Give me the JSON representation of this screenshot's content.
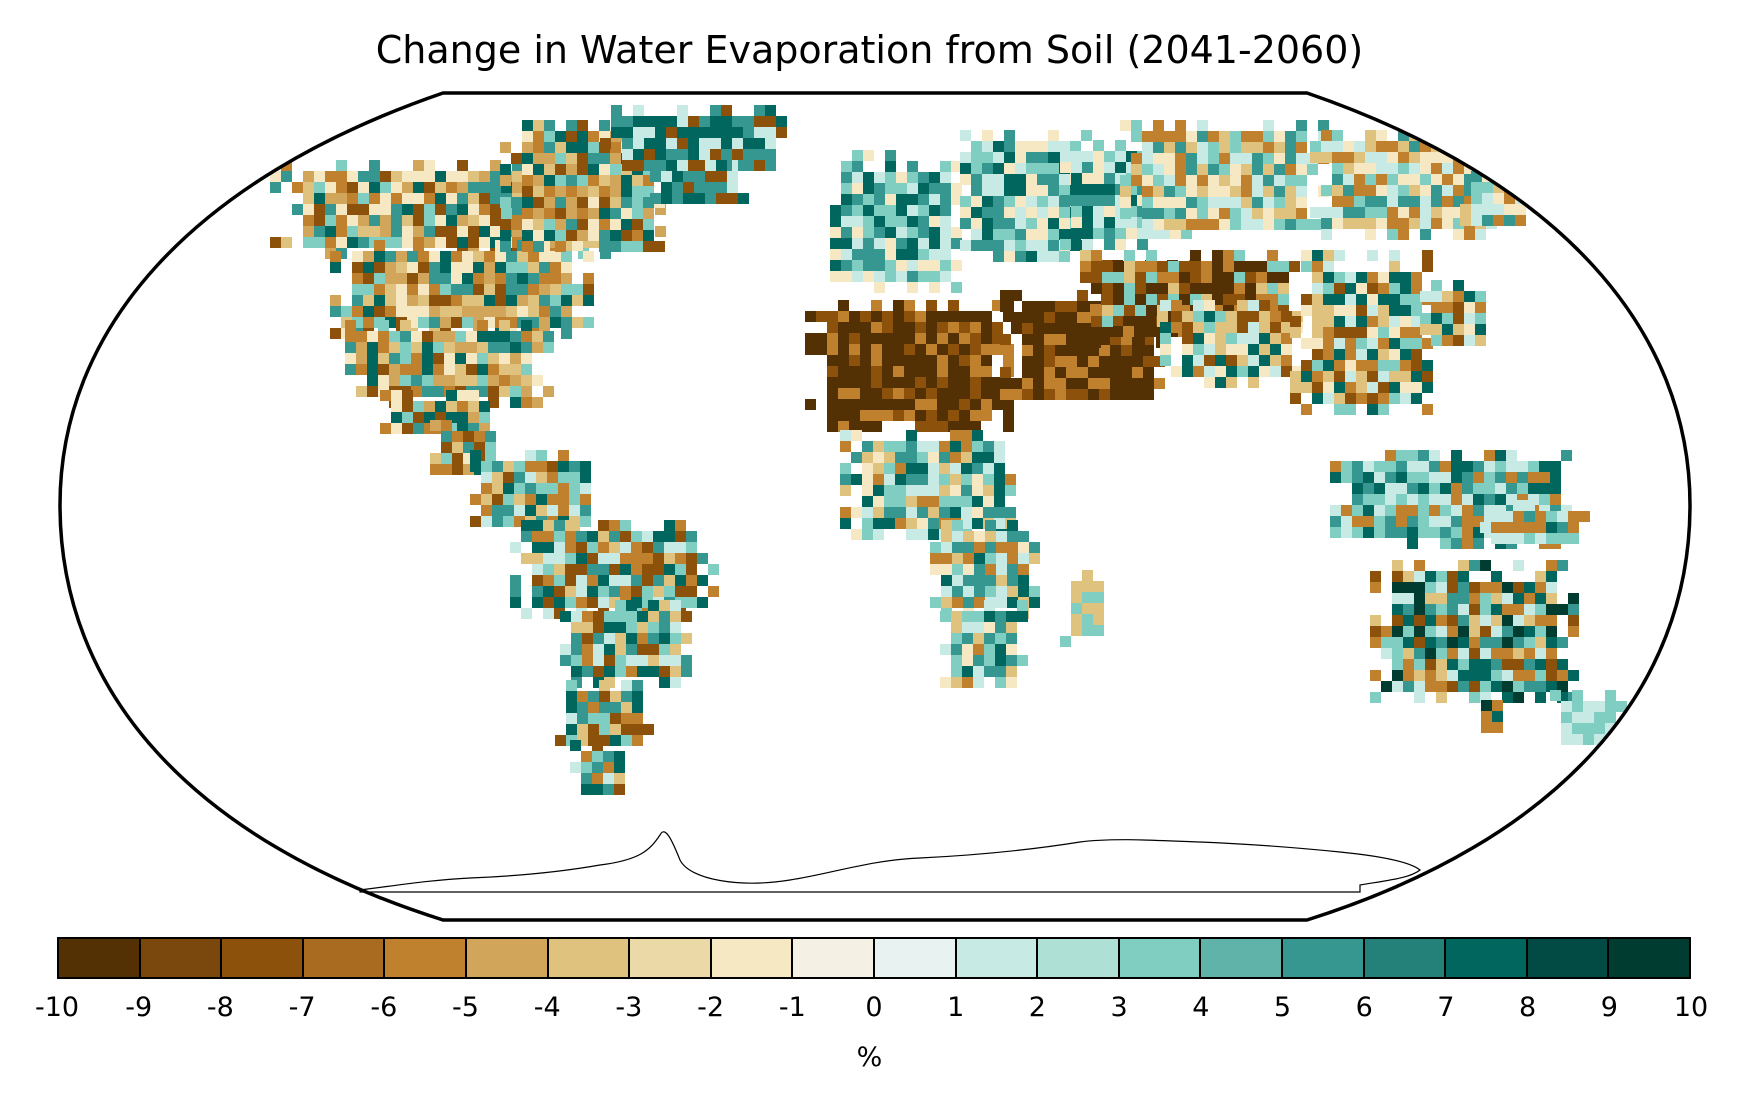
{
  "title": "Change in Water Evaporation from Soil (2041-2060)",
  "colorbar": {
    "unit": "%",
    "ticks": [
      "-10",
      "-9",
      "-8",
      "-7",
      "-6",
      "-5",
      "-4",
      "-3",
      "-2",
      "-1",
      "0",
      "1",
      "2",
      "3",
      "4",
      "5",
      "6",
      "7",
      "8",
      "9",
      "10"
    ],
    "colors": [
      "#543005",
      "#7a470d",
      "#8c510a",
      "#a86b1f",
      "#bf812d",
      "#d1a55a",
      "#dfc27d",
      "#ecd9a8",
      "#f6e8c3",
      "#f5f0e4",
      "#e8f3f1",
      "#c7eae5",
      "#aee0d6",
      "#80cdc1",
      "#5fb3a8",
      "#35978f",
      "#23817a",
      "#01665e",
      "#014b44",
      "#003c30"
    ]
  },
  "regions": [
    {
      "name": "North America",
      "colors": [
        "#bf812d",
        "#d1a55a",
        "#dfc27d",
        "#f6e8c3",
        "#80cdc1",
        "#35978f",
        "#01665e",
        "#8c510a"
      ]
    },
    {
      "name": "Greenland",
      "colors": [
        "#01665e",
        "#35978f",
        "#8c510a",
        "#c7eae5"
      ]
    },
    {
      "name": "South America",
      "colors": [
        "#01665e",
        "#35978f",
        "#80cdc1",
        "#bf812d",
        "#dfc27d",
        "#8c510a",
        "#c7eae5"
      ]
    },
    {
      "name": "Europe",
      "colors": [
        "#80cdc1",
        "#35978f",
        "#c7eae5",
        "#01665e",
        "#f6e8c3"
      ]
    },
    {
      "name": "North Africa and Middle East",
      "colors": [
        "#543005",
        "#543005",
        "#8c510a",
        "#543005",
        "#bf812d"
      ]
    },
    {
      "name": "Sub-Saharan Africa",
      "colors": [
        "#80cdc1",
        "#c7eae5",
        "#01665e",
        "#bf812d",
        "#dfc27d",
        "#35978f",
        "#f6e8c3"
      ]
    },
    {
      "name": "Northern Asia",
      "colors": [
        "#80cdc1",
        "#c7eae5",
        "#35978f",
        "#f6e8c3",
        "#dfc27d",
        "#bf812d"
      ]
    },
    {
      "name": "Central Asia",
      "colors": [
        "#543005",
        "#8c510a",
        "#bf812d",
        "#dfc27d",
        "#80cdc1"
      ]
    },
    {
      "name": "South and East Asia",
      "colors": [
        "#dfc27d",
        "#bf812d",
        "#80cdc1",
        "#01665e",
        "#c7eae5",
        "#8c510a",
        "#f6e8c3"
      ]
    },
    {
      "name": "Maritime Southeast Asia",
      "colors": [
        "#35978f",
        "#80cdc1",
        "#c7eae5",
        "#01665e",
        "#bf812d"
      ]
    },
    {
      "name": "Australia",
      "colors": [
        "#01665e",
        "#35978f",
        "#bf812d",
        "#dfc27d",
        "#80cdc1",
        "#c7eae5",
        "#8c510a",
        "#003c30"
      ]
    },
    {
      "name": "New Zealand",
      "colors": [
        "#80cdc1",
        "#c7eae5"
      ]
    },
    {
      "name": "Madagascar",
      "colors": [
        "#80cdc1",
        "#dfc27d"
      ]
    }
  ]
}
